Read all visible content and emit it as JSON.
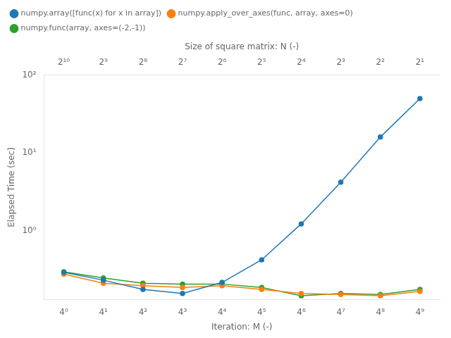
{
  "chart_data": {
    "type": "line",
    "xlabel": "Iteration: M (-)",
    "ylabel": "Elapsed Time (sec)",
    "top_xlabel": "Size of square matrix: N (-)",
    "categories": [
      "4⁰",
      "4¹",
      "4²",
      "4³",
      "4⁴",
      "4⁵",
      "4⁶",
      "4⁷",
      "4⁸",
      "4⁹"
    ],
    "top_categories": [
      "2¹⁰",
      "2⁹",
      "2⁸",
      "2⁷",
      "2⁶",
      "2⁵",
      "2⁴",
      "2³",
      "2²",
      "2¹"
    ],
    "series": [
      {
        "name": "numpy.array([func(x) for x in array])",
        "color": "#1f77b4",
        "marker": "circle",
        "line_style": "solid",
        "values": [
          0.29,
          0.23,
          0.175,
          0.155,
          0.215,
          0.42,
          1.22,
          4.2,
          16.0,
          50.0
        ]
      },
      {
        "name": "numpy.apply_over_axes(func, array, axes=0)",
        "color": "#ff7f0e",
        "marker": "circle",
        "line_style": "solid",
        "values": [
          0.275,
          0.21,
          0.195,
          0.185,
          0.195,
          0.175,
          0.155,
          0.15,
          0.145,
          0.165
        ]
      },
      {
        "name": "numpy.func(array, axes=(-2,-1))",
        "color": "#2ca02c",
        "marker": "circle",
        "line_style": "solid",
        "values": [
          0.295,
          0.245,
          0.21,
          0.205,
          0.205,
          0.185,
          0.145,
          0.155,
          0.15,
          0.175
        ]
      }
    ],
    "log": "y",
    "ylim": [
      0.13,
      100
    ],
    "yticks": [
      {
        "value": 1,
        "label": "10⁰"
      },
      {
        "value": 10,
        "label": "10¹"
      },
      {
        "value": 100,
        "label": "10²"
      }
    ],
    "grid": false,
    "legend": "upper left"
  }
}
